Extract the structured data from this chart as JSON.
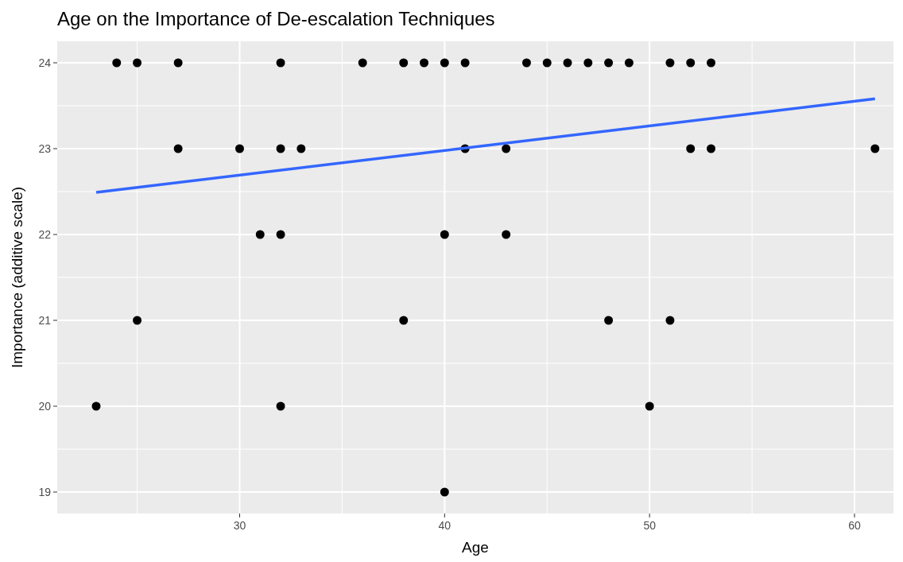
{
  "chart_data": {
    "type": "scatter",
    "title": "Age on the Importance of De-escalation Techniques",
    "xlabel": "Age",
    "ylabel": "Importance (additive scale)",
    "xlim": [
      21.1,
      61.9
    ],
    "ylim": [
      18.75,
      24.25
    ],
    "xticks": [
      30,
      40,
      50,
      60
    ],
    "yticks": [
      19,
      20,
      21,
      22,
      23,
      24
    ],
    "grid": true,
    "marker": "circle",
    "series": [
      {
        "color": "#000000",
        "x": [
          24,
          25,
          27,
          32,
          36,
          38,
          39,
          40,
          41,
          44,
          45,
          46,
          47,
          48,
          49,
          51,
          52,
          53,
          27,
          30,
          32,
          33,
          41,
          43,
          52,
          53,
          61,
          31,
          32,
          40,
          43,
          25,
          38,
          48,
          51,
          23,
          32,
          50,
          40
        ],
        "values": [
          24,
          24,
          24,
          24,
          24,
          24,
          24,
          24,
          24,
          24,
          24,
          24,
          24,
          24,
          24,
          24,
          24,
          24,
          23,
          23,
          23,
          23,
          23,
          23,
          23,
          23,
          23,
          22,
          22,
          22,
          22,
          21,
          21,
          21,
          21,
          20,
          20,
          20,
          19
        ]
      },
      {
        "type": "line",
        "marker": "none",
        "color": "#3366ff",
        "x": [
          23,
          61
        ],
        "values": [
          22.49,
          23.58
        ]
      }
    ]
  }
}
